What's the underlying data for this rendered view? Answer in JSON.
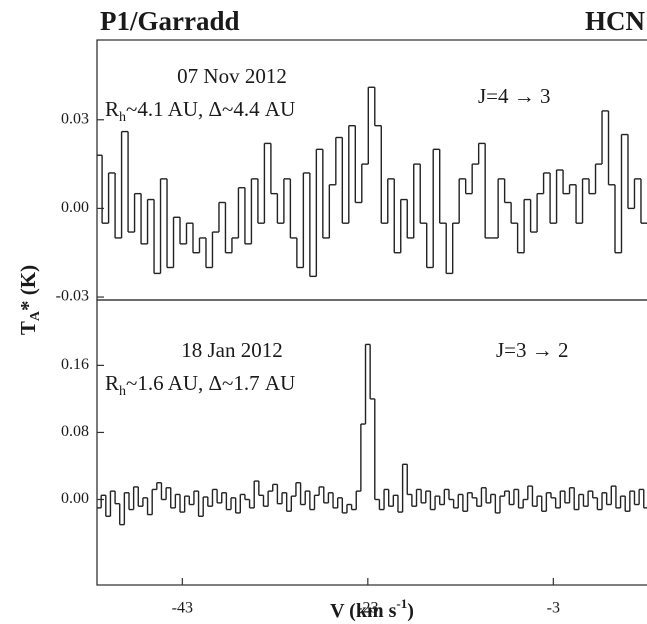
{
  "chart_data": [
    {
      "type": "step",
      "title": "P1/Garradd",
      "subtitle": "HCN",
      "ylabel": {
        "main": "T",
        "sub": "A",
        "rest": "* (K)"
      },
      "date": "07 Nov 2012",
      "distance": {
        "main": "R",
        "sub": "h",
        "rest": "~4.1 AU, Δ~4.4 AU"
      },
      "transition": "J=4 → 3",
      "xlim": [
        -52.2,
        7.1
      ],
      "ylim": [
        -0.031,
        0.057
      ],
      "yticks": [
        0.03,
        {
          "value": 0,
          "label": "0.00"
        },
        -0.03
      ],
      "color": "#222222",
      "x": [
        -52,
        -51.3,
        -50.6,
        -49.9,
        -49.2,
        -48.5,
        -47.8,
        -47.1,
        -46.4,
        -45.7,
        -45,
        -44.3,
        -43.6,
        -42.9,
        -42.2,
        -41.5,
        -40.8,
        -40.1,
        -39.4,
        -38.7,
        -38,
        -37.3,
        -36.6,
        -35.9,
        -35.2,
        -34.5,
        -33.8,
        -33.1,
        -32.4,
        -31.7,
        -31,
        -30.3,
        -29.6,
        -28.9,
        -28.2,
        -27.5,
        -26.8,
        -26.1,
        -25.4,
        -24.7,
        -24,
        -23.3,
        -22.6,
        -21.9,
        -21.2,
        -20.5,
        -19.8,
        -19.1,
        -18.4,
        -17.7,
        -17,
        -16.3,
        -15.6,
        -14.9,
        -14.2,
        -13.5,
        -12.8,
        -12.1,
        -11.4,
        -10.7,
        -10,
        -9.3,
        -8.6,
        -7.9,
        -7.2,
        -6.5,
        -5.8,
        -5.1,
        -4.4,
        -3.7,
        -3,
        -2.3,
        -1.6,
        -0.9,
        -0.2,
        0.5,
        1.2,
        1.9,
        2.6,
        3.3,
        4,
        4.7,
        5.4,
        6.1,
        6.8
      ],
      "values": [
        0.018,
        -0.005,
        0.012,
        -0.01,
        0.026,
        -0.008,
        0.005,
        -0.012,
        0.003,
        -0.022,
        0.01,
        -0.02,
        -0.003,
        -0.012,
        -0.005,
        -0.015,
        -0.01,
        -0.02,
        -0.008,
        0.002,
        -0.015,
        -0.01,
        0.007,
        -0.012,
        0.01,
        -0.005,
        0.022,
        0.005,
        -0.005,
        0.01,
        -0.01,
        -0.02,
        0.012,
        -0.023,
        0.02,
        -0.01,
        0.008,
        0.024,
        -0.005,
        0.028,
        0.002,
        0.015,
        0.041,
        0.028,
        -0.005,
        0.01,
        -0.015,
        0.003,
        -0.01,
        0.015,
        -0.005,
        -0.02,
        0.02,
        -0.005,
        -0.022,
        -0.005,
        0.01,
        0.005,
        0.015,
        0.022,
        -0.01,
        -0.01,
        0.01,
        0.002,
        -0.005,
        -0.015,
        0.003,
        -0.008,
        0.005,
        0.012,
        -0.005,
        0.013,
        0.005,
        0.008,
        -0.005,
        0.01,
        0.005,
        0.015,
        0.033,
        0.008,
        -0.015,
        0.025,
        0,
        0.01,
        -0.005
      ]
    },
    {
      "type": "step",
      "xlabel": {
        "main": "V (km s",
        "sup": "-1",
        "rest": ")"
      },
      "date": "18 Jan 2012",
      "distance": {
        "main": "R",
        "sub": "h",
        "rest": "~1.6 AU, Δ~1.7 AU"
      },
      "transition": "J=3 → 2",
      "xlim": [
        -52.2,
        7.1
      ],
      "ylim": [
        -0.102,
        0.238
      ],
      "xticks": [
        -43,
        -23,
        -3
      ],
      "yticks": [
        0.16,
        0.08,
        {
          "value": 0,
          "label": "0.00"
        }
      ],
      "color": "#222222",
      "x": [
        -52,
        -51.5,
        -51,
        -50.5,
        -50,
        -49.5,
        -49,
        -48.5,
        -48,
        -47.5,
        -47,
        -46.5,
        -46,
        -45.5,
        -45,
        -44.5,
        -44,
        -43.5,
        -43,
        -42.5,
        -42,
        -41.5,
        -41,
        -40.5,
        -40,
        -39.5,
        -39,
        -38.5,
        -38,
        -37.5,
        -37,
        -36.5,
        -36,
        -35.5,
        -35,
        -34.5,
        -34,
        -33.5,
        -33,
        -32.5,
        -32,
        -31.5,
        -31,
        -30.5,
        -30,
        -29.5,
        -29,
        -28.5,
        -28,
        -27.5,
        -27,
        -26.5,
        -26,
        -25.5,
        -25,
        -24.5,
        -24,
        -23.5,
        -23,
        -22.5,
        -22,
        -21.5,
        -21,
        -20.5,
        -20,
        -19.5,
        -19,
        -18.5,
        -18,
        -17.5,
        -17,
        -16.5,
        -16,
        -15.5,
        -15,
        -14.5,
        -14,
        -13.5,
        -13,
        -12.5,
        -12,
        -11.5,
        -11,
        -10.5,
        -10,
        -9.5,
        -9,
        -8.5,
        -8,
        -7.5,
        -7,
        -6.5,
        -6,
        -5.5,
        -5,
        -4.5,
        -4,
        -3.5,
        -3,
        -2.5,
        -2,
        -1.5,
        -1,
        -0.5,
        0,
        0.5,
        1,
        1.5,
        2,
        2.5,
        3,
        3.5,
        4,
        4.5,
        5,
        5.5,
        6,
        6.5,
        7
      ],
      "values": [
        -0.01,
        0.005,
        -0.02,
        0.01,
        -0.005,
        -0.03,
        0.008,
        -0.012,
        0.015,
        -0.008,
        0.002,
        -0.018,
        0.012,
        0.02,
        0,
        0.014,
        -0.01,
        0.006,
        -0.015,
        0.004,
        -0.006,
        0.01,
        -0.02,
        0.003,
        -0.008,
        0.012,
        -0.004,
        0.008,
        -0.012,
        0.002,
        -0.016,
        0.006,
        0,
        -0.01,
        0.022,
        0.005,
        -0.008,
        0.01,
        0.018,
        -0.005,
        0.008,
        -0.014,
        0.004,
        0.02,
        -0.006,
        0.01,
        -0.012,
        0.005,
        0.015,
        -0.004,
        0.008,
        -0.01,
        0.002,
        -0.016,
        -0.006,
        -0.012,
        0.01,
        0.09,
        0.185,
        0.12,
        0,
        -0.012,
        0.012,
        -0.008,
        0.005,
        -0.015,
        0.042,
        0.006,
        -0.008,
        0.012,
        -0.004,
        0.01,
        -0.012,
        0.004,
        -0.006,
        0.012,
        0,
        -0.01,
        0.006,
        -0.014,
        0.008,
        0.002,
        -0.008,
        0.014,
        -0.004,
        0.006,
        -0.016,
        0.004,
        0.01,
        -0.006,
        0.012,
        -0.01,
        0,
        0.016,
        -0.008,
        0.004,
        -0.014,
        0.008,
        0.002,
        -0.01,
        0.01,
        -0.004,
        0.014,
        -0.012,
        0.006,
        -0.008,
        0.01,
        0.002,
        -0.012,
        0.008,
        -0.006,
        0.016,
        -0.01,
        0.004,
        -0.014,
        0.01,
        -0.006,
        0.012,
        -0.01
      ]
    }
  ]
}
